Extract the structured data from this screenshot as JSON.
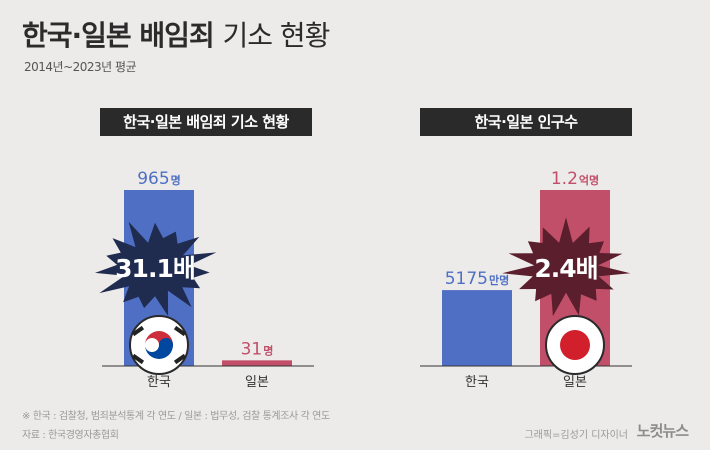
{
  "header": {
    "title_bold": "한국·일본 배임죄",
    "title_light": "기소 현황",
    "subtitle": "2014년~2023년 평균"
  },
  "chart_data": [
    {
      "type": "bar",
      "title": "한국·일본 배임죄 기소 현황",
      "categories": [
        "한국",
        "일본"
      ],
      "values": [
        965,
        31
      ],
      "value_labels": [
        {
          "num": "965",
          "unit": "명"
        },
        {
          "num": "31",
          "unit": "명"
        }
      ],
      "ratio_label": "31.1배",
      "colors": [
        "#4e6fc3",
        "#c14f69"
      ],
      "burst_color": "#1f2b4f"
    },
    {
      "type": "bar",
      "title": "한국·일본 인구수",
      "categories": [
        "한국",
        "일본"
      ],
      "values": [
        5175,
        12000
      ],
      "value_labels": [
        {
          "num": "5175",
          "unit": "만명"
        },
        {
          "num": "1.2",
          "unit": "억명"
        }
      ],
      "ratio_label": "2.4배",
      "colors": [
        "#4e6fc3",
        "#c14f69"
      ],
      "burst_color": "#5a1e2c"
    }
  ],
  "footer": {
    "note": "※ 한국 : 검찰청, 범죄분석통계 각 연도 / 일본 : 법무성, 검찰 통계조사 각 연도",
    "source": "자료 : 한국경영자총협회",
    "credit": "그래픽=김성기 디자이너",
    "logo": "노컷뉴스"
  }
}
